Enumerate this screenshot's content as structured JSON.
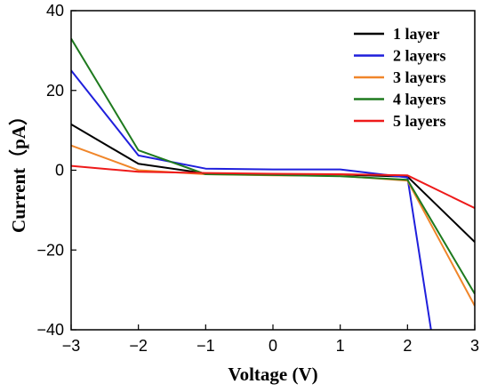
{
  "chart_data": {
    "type": "line",
    "xlabel": "Voltage (V)",
    "ylabel": "Current（pA）",
    "xlim": [
      -3,
      3
    ],
    "ylim": [
      -40,
      40
    ],
    "x_ticks": [
      -3,
      -2,
      -1,
      0,
      1,
      2,
      3
    ],
    "y_ticks": [
      -40,
      -20,
      0,
      20,
      40
    ],
    "x_tick_labels": [
      "−3",
      "−2",
      "−1",
      "0",
      "1",
      "2",
      "3"
    ],
    "y_tick_labels": [
      "−40",
      "−20",
      "0",
      "20",
      "40"
    ],
    "grid": false,
    "legend_position": "top-right",
    "series": [
      {
        "name": "1 layer",
        "color": "#000000",
        "x": [
          -3,
          -2,
          -1,
          0,
          1,
          2,
          3
        ],
        "y": [
          11.5,
          1.6,
          -0.8,
          -1.0,
          -1.1,
          -1.6,
          -18.0
        ]
      },
      {
        "name": "2 layers",
        "color": "#1f1fdc",
        "x": [
          -3,
          -2,
          -1,
          0,
          1,
          2,
          2.35
        ],
        "y": [
          25.0,
          3.7,
          0.4,
          0.2,
          0.2,
          -1.8,
          -40.0
        ]
      },
      {
        "name": "3 layers",
        "color": "#f0862a",
        "x": [
          -3,
          -2,
          -1,
          0,
          1,
          2,
          3
        ],
        "y": [
          6.2,
          0.0,
          -1.0,
          -1.3,
          -1.4,
          -2.6,
          -34.0
        ]
      },
      {
        "name": "4 layers",
        "color": "#1e7a1e",
        "x": [
          -3,
          -2,
          -1,
          0,
          1,
          2,
          3
        ],
        "y": [
          33.0,
          5.0,
          -1.0,
          -1.2,
          -1.5,
          -2.4,
          -31.0
        ]
      },
      {
        "name": "5 layers",
        "color": "#ee1a1a",
        "x": [
          -3,
          -2,
          -1,
          0,
          1,
          2,
          3
        ],
        "y": [
          1.1,
          -0.4,
          -0.7,
          -0.9,
          -1.0,
          -1.3,
          -9.5
        ]
      }
    ]
  }
}
